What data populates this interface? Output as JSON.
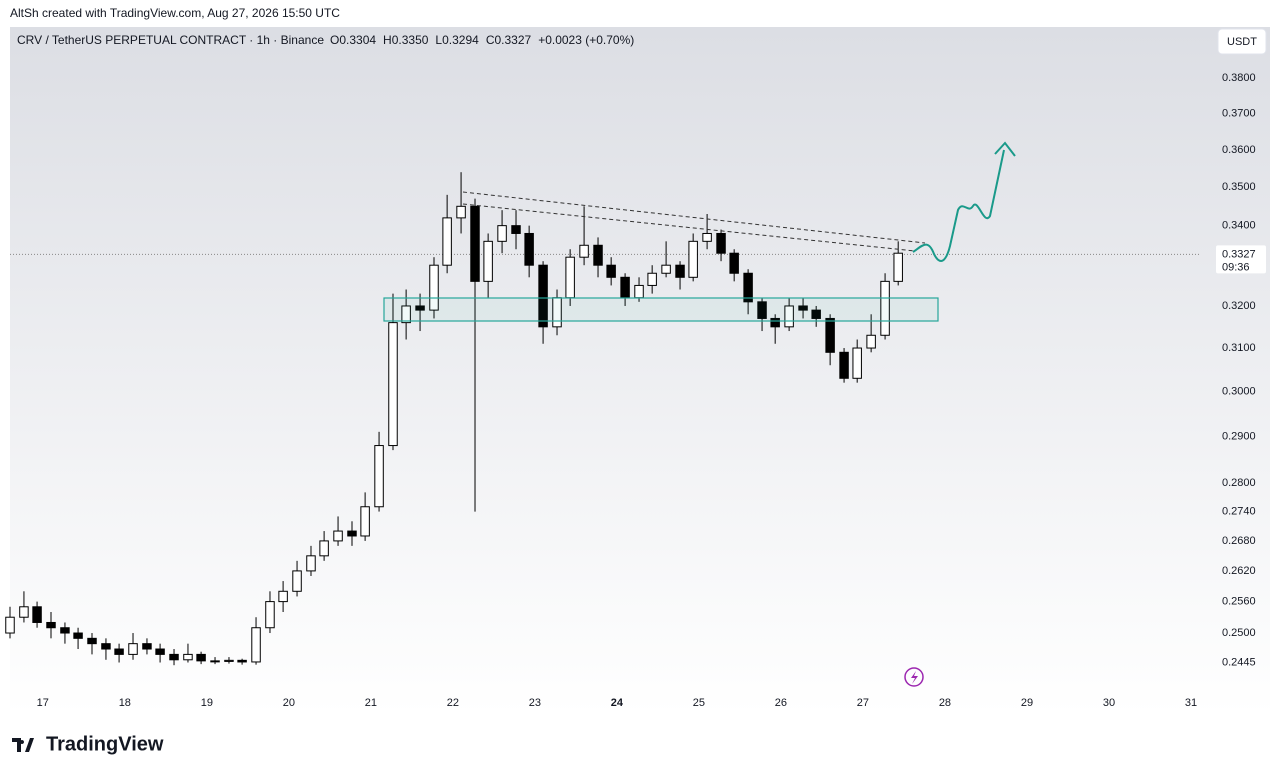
{
  "header": {
    "credit": "AltSh created with TradingView.com, Aug 27, 2026 15:50 UTC",
    "legend_title": "CRV / TetherUS PERPETUAL CONTRACT · 1h · Binance",
    "legend_values": [
      "O0.3304",
      "H0.3350",
      "L0.3294",
      "C0.3327",
      "+0.0023 (+0.70%)"
    ],
    "currency": "USDT"
  },
  "chart_data": {
    "type": "candlestick",
    "log_scale": true,
    "up_color": "#ffffff",
    "down_color": "#000000",
    "x": [
      16.6,
      16.77,
      16.93,
      17.1,
      17.27,
      17.43,
      17.6,
      17.77,
      17.93,
      18.1,
      18.27,
      18.43,
      18.6,
      18.77,
      18.93,
      19.1,
      19.27,
      19.43,
      19.6,
      19.77,
      19.93,
      20.1,
      20.27,
      20.43,
      20.6,
      20.77,
      20.93,
      21.1,
      21.27,
      21.43,
      21.6,
      21.77,
      21.93,
      22.1,
      22.27,
      22.43,
      22.6,
      22.77,
      22.93,
      23.1,
      23.27,
      23.43,
      23.6,
      23.77,
      23.93,
      24.1,
      24.27,
      24.43,
      24.6,
      24.77,
      24.93,
      25.1,
      25.27,
      25.43,
      25.6,
      25.77,
      25.93,
      26.1,
      26.27,
      26.43,
      26.6,
      26.77,
      26.93,
      27.1,
      27.27,
      27.43
    ],
    "open": [
      0.25,
      0.253,
      0.255,
      0.252,
      0.251,
      0.25,
      0.249,
      0.248,
      0.247,
      0.246,
      0.248,
      0.247,
      0.246,
      0.245,
      0.246,
      0.2448,
      0.2447,
      0.2449,
      0.2446,
      0.251,
      0.256,
      0.258,
      0.262,
      0.265,
      0.268,
      0.27,
      0.269,
      0.275,
      0.288,
      0.316,
      0.32,
      0.319,
      0.33,
      0.342,
      0.345,
      0.326,
      0.336,
      0.34,
      0.338,
      0.33,
      0.315,
      0.322,
      0.332,
      0.335,
      0.33,
      0.327,
      0.322,
      0.325,
      0.328,
      0.33,
      0.327,
      0.336,
      0.338,
      0.333,
      0.328,
      0.321,
      0.317,
      0.315,
      0.32,
      0.319,
      0.317,
      0.309,
      0.303,
      0.31,
      0.313,
      0.326
    ],
    "high": [
      0.255,
      0.258,
      0.256,
      0.254,
      0.252,
      0.251,
      0.25,
      0.249,
      0.248,
      0.25,
      0.249,
      0.248,
      0.247,
      0.248,
      0.2465,
      0.2455,
      0.2455,
      0.2452,
      0.253,
      0.258,
      0.26,
      0.264,
      0.267,
      0.27,
      0.273,
      0.272,
      0.278,
      0.291,
      0.323,
      0.324,
      0.323,
      0.332,
      0.348,
      0.354,
      0.347,
      0.338,
      0.344,
      0.344,
      0.34,
      0.331,
      0.324,
      0.334,
      0.345,
      0.337,
      0.332,
      0.328,
      0.327,
      0.33,
      0.336,
      0.331,
      0.338,
      0.343,
      0.339,
      0.334,
      0.329,
      0.322,
      0.318,
      0.322,
      0.322,
      0.32,
      0.318,
      0.31,
      0.312,
      0.318,
      0.328,
      0.336
    ],
    "low": [
      0.249,
      0.252,
      0.251,
      0.249,
      0.248,
      0.247,
      0.246,
      0.245,
      0.2445,
      0.245,
      0.246,
      0.2445,
      0.244,
      0.2445,
      0.2442,
      0.2442,
      0.2443,
      0.2441,
      0.2441,
      0.25,
      0.254,
      0.257,
      0.261,
      0.264,
      0.267,
      0.267,
      0.268,
      0.274,
      0.287,
      0.312,
      0.314,
      0.317,
      0.328,
      0.338,
      0.274,
      0.322,
      0.333,
      0.334,
      0.327,
      0.311,
      0.313,
      0.32,
      0.33,
      0.327,
      0.325,
      0.32,
      0.321,
      0.323,
      0.327,
      0.324,
      0.326,
      0.334,
      0.331,
      0.326,
      0.318,
      0.314,
      0.311,
      0.314,
      0.317,
      0.315,
      0.306,
      0.302,
      0.302,
      0.309,
      0.312,
      0.325
    ],
    "close": [
      0.253,
      0.255,
      0.252,
      0.251,
      0.25,
      0.249,
      0.248,
      0.247,
      0.246,
      0.248,
      0.247,
      0.246,
      0.245,
      0.246,
      0.2448,
      0.2447,
      0.2449,
      0.2446,
      0.251,
      0.256,
      0.258,
      0.262,
      0.265,
      0.268,
      0.27,
      0.269,
      0.275,
      0.288,
      0.316,
      0.32,
      0.319,
      0.33,
      0.342,
      0.345,
      0.326,
      0.336,
      0.34,
      0.338,
      0.33,
      0.315,
      0.322,
      0.332,
      0.335,
      0.33,
      0.327,
      0.322,
      0.325,
      0.328,
      0.33,
      0.327,
      0.336,
      0.338,
      0.333,
      0.328,
      0.321,
      0.317,
      0.315,
      0.32,
      0.319,
      0.317,
      0.309,
      0.303,
      0.31,
      0.313,
      0.326,
      0.333
    ],
    "xlim": [
      16.6,
      31.11
    ],
    "xticks": [
      17,
      18,
      19,
      20,
      21,
      22,
      23,
      24,
      25,
      26,
      27,
      28,
      29,
      30,
      31
    ],
    "highlight_xtick": 24,
    "ylim": [
      0.235,
      0.395
    ],
    "yticks": [
      {
        "value": 0.38,
        "label": "0.3800"
      },
      {
        "value": 0.37,
        "label": "0.3700"
      },
      {
        "value": 0.36,
        "label": "0.3600"
      },
      {
        "value": 0.35,
        "label": "0.3500"
      },
      {
        "value": 0.34,
        "label": "0.3400"
      },
      {
        "value": 0.32,
        "label": "0.3200"
      },
      {
        "value": 0.31,
        "label": "0.3100"
      },
      {
        "value": 0.3,
        "label": "0.3000"
      },
      {
        "value": 0.29,
        "label": "0.2900"
      },
      {
        "value": 0.28,
        "label": "0.2800"
      },
      {
        "value": 0.274,
        "label": "0.2740"
      },
      {
        "value": 0.268,
        "label": "0.2680"
      },
      {
        "value": 0.262,
        "label": "0.2620"
      },
      {
        "value": 0.256,
        "label": "0.2560"
      },
      {
        "value": 0.25,
        "label": "0.2500"
      },
      0.2445
    ],
    "last_price": 0.3327,
    "countdown": "09:36"
  },
  "footer": {
    "logo": "TradingView"
  }
}
